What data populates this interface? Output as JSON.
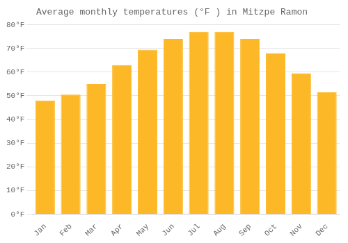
{
  "chart_data": {
    "type": "bar",
    "title": "Average monthly temperatures (°F ) in Mitzpe Ramon",
    "categories": [
      "Jan",
      "Feb",
      "Mar",
      "Apr",
      "May",
      "Jun",
      "Jul",
      "Aug",
      "Sep",
      "Oct",
      "Nov",
      "Dec"
    ],
    "values": [
      48,
      50.5,
      55,
      63,
      69.5,
      74,
      77,
      77,
      74,
      68,
      59.5,
      51.5
    ],
    "color": "#FDB827",
    "ylim": [
      0,
      80
    ],
    "yticks": [
      {
        "value": 0,
        "label": "0°F"
      },
      {
        "value": 10,
        "label": "10°F"
      },
      {
        "value": 20,
        "label": "20°F"
      },
      {
        "value": 30,
        "label": "30°F"
      },
      {
        "value": 40,
        "label": "40°F"
      },
      {
        "value": 50,
        "label": "50°F"
      },
      {
        "value": 60,
        "label": "60°F"
      },
      {
        "value": 70,
        "label": "70°F"
      },
      {
        "value": 80,
        "label": "80°F"
      }
    ],
    "grid": true
  }
}
